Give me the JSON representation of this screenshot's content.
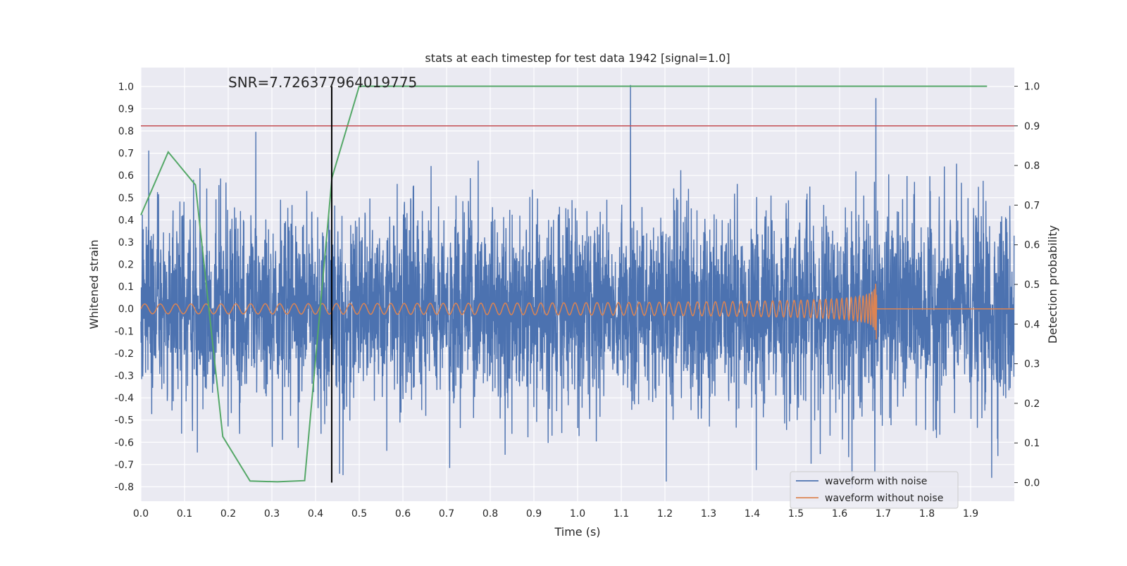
{
  "chart_data": {
    "type": "line",
    "title": "stats at each timestep for test data 1942 [signal=1.0]",
    "annotation": "SNR=7.726377964019775",
    "xlabel": "Time (s)",
    "ylabel_left": "Whitened strain",
    "ylabel_right": "Detection probability",
    "xlim": [
      0.0,
      2.0
    ],
    "ylim_left": [
      -0.865,
      1.085
    ],
    "ylim_right": [
      -0.047,
      1.047
    ],
    "x_ticks": [
      "0.0",
      "0.1",
      "0.2",
      "0.3",
      "0.4",
      "0.5",
      "0.6",
      "0.7",
      "0.8",
      "0.9",
      "1.0",
      "1.1",
      "1.2",
      "1.3",
      "1.4",
      "1.5",
      "1.6",
      "1.7",
      "1.8",
      "1.9"
    ],
    "y_ticks_left": [
      "1.0",
      "0.9",
      "0.8",
      "0.7",
      "0.6",
      "0.5",
      "0.4",
      "0.3",
      "0.2",
      "0.1",
      "0.0",
      "-0.1",
      "-0.2",
      "-0.3",
      "-0.4",
      "-0.5",
      "-0.6",
      "-0.7",
      "-0.8"
    ],
    "y_ticks_right": [
      "1.0",
      "0.9",
      "0.8",
      "0.7",
      "0.6",
      "0.5",
      "0.4",
      "0.3",
      "0.2",
      "0.1",
      "0.0"
    ],
    "grid": true,
    "legend_position": "lower-right",
    "series": [
      {
        "name": "waveform with noise",
        "color": "#4c72b0",
        "axis": "left",
        "description_values": {
          "sample_rate_hz": 2048,
          "amplitude_std": 0.22,
          "spikes": [
            [
              0.263,
              0.81
            ],
            [
              0.437,
              0.6
            ],
            [
              1.121,
              0.99
            ],
            [
              1.203,
              -0.77
            ],
            [
              1.409,
              -0.75
            ],
            [
              1.683,
              0.88
            ],
            [
              1.948,
              -0.76
            ]
          ]
        }
      },
      {
        "name": "waveform without noise",
        "color": "#dd8452",
        "axis": "left",
        "description_values": {
          "chirp_start_freq_hz": 28,
          "chirp_merger_time_s": 1.685,
          "amplitude_start": 0.022,
          "amplitude_peak": 0.3
        }
      },
      {
        "name": "",
        "color": "#55a868",
        "axis": "right",
        "x": [
          0.0,
          0.0625,
          0.125,
          0.1875,
          0.25,
          0.3125,
          0.375,
          0.4375,
          0.5,
          0.5625,
          0.625,
          0.6875,
          0.75,
          0.8125,
          0.875,
          0.9375,
          1.0,
          1.0625,
          1.125,
          1.1875,
          1.25,
          1.3125,
          1.375,
          1.4375,
          1.5,
          1.5625,
          1.625,
          1.6875,
          1.75,
          1.8125,
          1.875,
          1.9375
        ],
        "y": [
          0.675,
          0.834,
          0.751,
          0.116,
          0.004,
          0.002,
          0.005,
          0.769,
          1.0,
          1.0,
          1.0,
          1.0,
          1.0,
          1.0,
          1.0,
          1.0,
          1.0,
          1.0,
          1.0,
          1.0,
          1.0,
          1.0,
          1.0,
          1.0,
          1.0,
          1.0,
          1.0,
          1.0,
          1.0,
          1.0,
          1.0,
          1.0
        ]
      }
    ],
    "threshold_line": {
      "axis": "right",
      "value": 0.9,
      "color": "#c44e52"
    },
    "marker_line": {
      "x": 0.437,
      "y_from": 0.0,
      "y_to": 1.0,
      "axis": "right",
      "color": "#000000"
    },
    "colors": {
      "plot_background": "#eaeaf2",
      "grid": "#ffffff"
    }
  }
}
